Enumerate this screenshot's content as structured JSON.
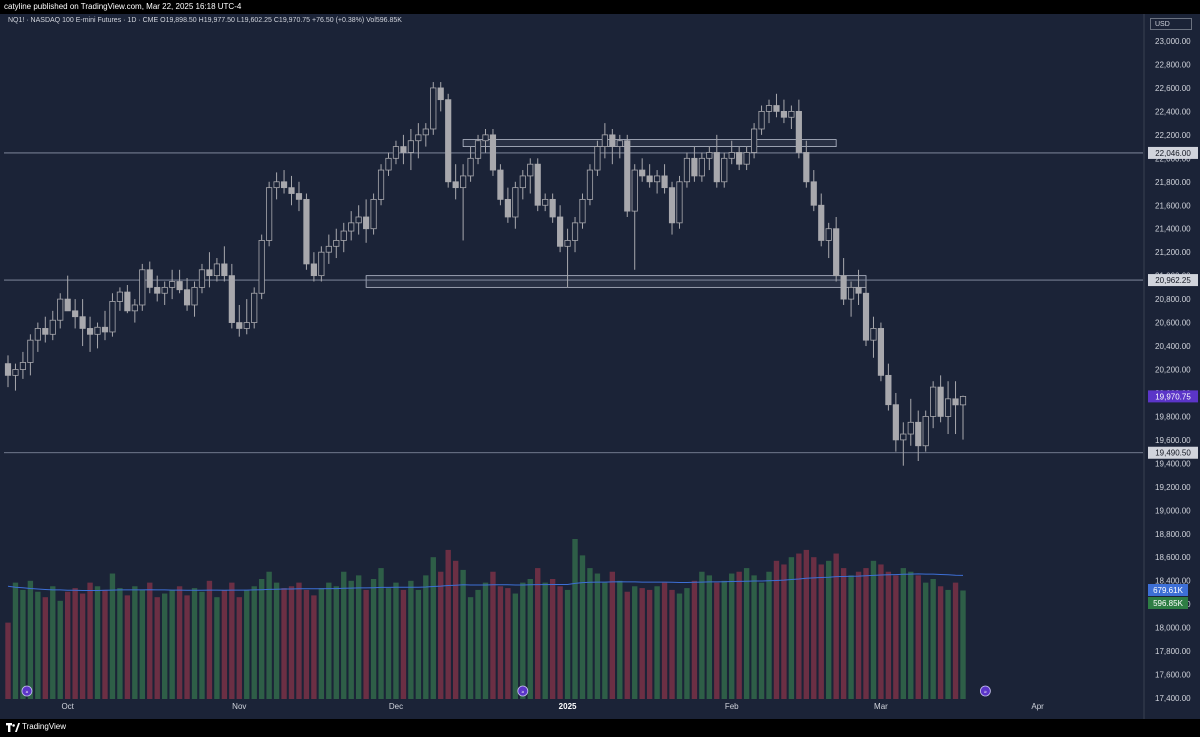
{
  "header": {
    "publisher_line": "catyline published on TradingView.com, Mar 22, 2025 16:18 UTC-4"
  },
  "legend": {
    "symbol": "NQ1! · NASDAQ 100 E-mini Futures · 1D · CME",
    "open_label": "O",
    "open": "19,898.50",
    "high_label": "H",
    "high": "19,977.50",
    "low_label": "L",
    "low": "19,602.25",
    "close_label": "C",
    "close": "19,970.75",
    "change": "+76.50 (+0.38%)",
    "vol_label": "Vol",
    "vol": "596.85K"
  },
  "currency_button": "USD",
  "footer": {
    "brand": "TradingView"
  },
  "colors": {
    "background": "#1b2337",
    "candle": "#a8a8ad",
    "level_line": "#8c94a8",
    "volume_up": "#2e5e47",
    "volume_down": "#6b2f44",
    "volume_ma": "#3d6fd6",
    "price_badge": "#5b35c8",
    "vol_ma_badge": "#3d6fd6",
    "vol_badge": "#2e7d44",
    "level_badge": "#d1d4dc"
  },
  "chart_data": {
    "type": "candlestick",
    "price_axis": {
      "ylim": [
        17300,
        23050
      ],
      "ticks": [
        "23,000.00",
        "22,800.00",
        "22,600.00",
        "22,400.00",
        "22,200.00",
        "22,000.00",
        "21,800.00",
        "21,600.00",
        "21,400.00",
        "21,200.00",
        "21,000.00",
        "20,800.00",
        "20,600.00",
        "20,400.00",
        "20,200.00",
        "20,000.00",
        "19,800.00",
        "19,600.00",
        "19,400.00",
        "19,200.00",
        "19,000.00",
        "18,800.00",
        "18,600.00",
        "18,400.00",
        "18,200.00",
        "18,000.00",
        "17,800.00",
        "17,600.00",
        "17,400.00"
      ],
      "tick_values": [
        23000,
        22800,
        22600,
        22400,
        22200,
        22000,
        21800,
        21600,
        21400,
        21200,
        21000,
        20800,
        20600,
        20400,
        20200,
        20000,
        19800,
        19600,
        19400,
        19200,
        19000,
        18800,
        18600,
        18400,
        18200,
        18000,
        17800,
        17600,
        17400
      ]
    },
    "time_axis": {
      "labels": [
        {
          "text": "Oct",
          "date": "2024-10-01",
          "bold": false
        },
        {
          "text": "Nov",
          "date": "2024-11-01",
          "bold": false
        },
        {
          "text": "Dec",
          "date": "2024-12-02",
          "bold": false
        },
        {
          "text": "2025",
          "date": "2025-01-02",
          "bold": true
        },
        {
          "text": "Feb",
          "date": "2025-02-03",
          "bold": false
        },
        {
          "text": "Mar",
          "date": "2025-03-03",
          "bold": false
        },
        {
          "text": "Apr",
          "date": "2025-04-01",
          "bold": false
        }
      ]
    },
    "levels": [
      {
        "value": 22046.0,
        "label": "22,046.00"
      },
      {
        "value": 20962.25,
        "label": "20,962.25"
      },
      {
        "value": 19490.5,
        "label": "19,490.50"
      }
    ],
    "zones": [
      {
        "from": "2024-12-13",
        "to": "2025-02-21",
        "low": 22100,
        "high": 22160
      },
      {
        "from": "2024-11-26",
        "to": "2025-02-27",
        "low": 20900,
        "high": 21000
      }
    ],
    "last_price": {
      "value": 19970.75,
      "label": "19,970.75"
    },
    "volume_badges": [
      {
        "value": 679.61,
        "label": "679.61K"
      },
      {
        "value": 596.85,
        "label": "596.85K"
      }
    ],
    "volume_unit": "K",
    "first_date": "2024-09-19",
    "candles": [
      {
        "o": 20250,
        "h": 20320,
        "l": 20050,
        "c": 20150
      },
      {
        "o": 20150,
        "h": 20250,
        "l": 20020,
        "c": 20200
      },
      {
        "o": 20200,
        "h": 20350,
        "l": 20120,
        "c": 20260
      },
      {
        "o": 20260,
        "h": 20500,
        "l": 20150,
        "c": 20450
      },
      {
        "o": 20450,
        "h": 20600,
        "l": 20350,
        "c": 20550
      },
      {
        "o": 20550,
        "h": 20650,
        "l": 20430,
        "c": 20500
      },
      {
        "o": 20500,
        "h": 20700,
        "l": 20450,
        "c": 20620
      },
      {
        "o": 20620,
        "h": 20850,
        "l": 20550,
        "c": 20800
      },
      {
        "o": 20800,
        "h": 21000,
        "l": 20700,
        "c": 20700
      },
      {
        "o": 20700,
        "h": 20800,
        "l": 20550,
        "c": 20650
      },
      {
        "o": 20650,
        "h": 20800,
        "l": 20400,
        "c": 20550
      },
      {
        "o": 20550,
        "h": 20650,
        "l": 20350,
        "c": 20500
      },
      {
        "o": 20500,
        "h": 20600,
        "l": 20380,
        "c": 20560
      },
      {
        "o": 20560,
        "h": 20700,
        "l": 20450,
        "c": 20520
      },
      {
        "o": 20520,
        "h": 20850,
        "l": 20480,
        "c": 20780
      },
      {
        "o": 20780,
        "h": 20900,
        "l": 20700,
        "c": 20860
      },
      {
        "o": 20860,
        "h": 20920,
        "l": 20680,
        "c": 20700
      },
      {
        "o": 20700,
        "h": 20800,
        "l": 20600,
        "c": 20750
      },
      {
        "o": 20750,
        "h": 21100,
        "l": 20700,
        "c": 21050
      },
      {
        "o": 21050,
        "h": 21120,
        "l": 20850,
        "c": 20900
      },
      {
        "o": 20900,
        "h": 21000,
        "l": 20780,
        "c": 20850
      },
      {
        "o": 20850,
        "h": 20950,
        "l": 20750,
        "c": 20900
      },
      {
        "o": 20900,
        "h": 21050,
        "l": 20800,
        "c": 20950
      },
      {
        "o": 20950,
        "h": 21050,
        "l": 20850,
        "c": 20880
      },
      {
        "o": 20880,
        "h": 20980,
        "l": 20700,
        "c": 20750
      },
      {
        "o": 20750,
        "h": 20950,
        "l": 20650,
        "c": 20900
      },
      {
        "o": 20900,
        "h": 21100,
        "l": 20850,
        "c": 21050
      },
      {
        "o": 21050,
        "h": 21200,
        "l": 20900,
        "c": 21000
      },
      {
        "o": 21000,
        "h": 21150,
        "l": 20950,
        "c": 21100
      },
      {
        "o": 21100,
        "h": 21250,
        "l": 20950,
        "c": 21000
      },
      {
        "o": 21000,
        "h": 21100,
        "l": 20550,
        "c": 20600
      },
      {
        "o": 20600,
        "h": 20750,
        "l": 20480,
        "c": 20550
      },
      {
        "o": 20550,
        "h": 20800,
        "l": 20500,
        "c": 20600
      },
      {
        "o": 20600,
        "h": 20900,
        "l": 20550,
        "c": 20850
      },
      {
        "o": 20850,
        "h": 21350,
        "l": 20800,
        "c": 21300
      },
      {
        "o": 21300,
        "h": 21800,
        "l": 21250,
        "c": 21750
      },
      {
        "o": 21750,
        "h": 21880,
        "l": 21650,
        "c": 21800
      },
      {
        "o": 21800,
        "h": 21900,
        "l": 21700,
        "c": 21750
      },
      {
        "o": 21750,
        "h": 21850,
        "l": 21600,
        "c": 21700
      },
      {
        "o": 21700,
        "h": 21800,
        "l": 21550,
        "c": 21650
      },
      {
        "o": 21650,
        "h": 21700,
        "l": 21050,
        "c": 21100
      },
      {
        "o": 21100,
        "h": 21200,
        "l": 20950,
        "c": 21000
      },
      {
        "o": 21000,
        "h": 21250,
        "l": 20950,
        "c": 21200
      },
      {
        "o": 21200,
        "h": 21350,
        "l": 21100,
        "c": 21250
      },
      {
        "o": 21250,
        "h": 21400,
        "l": 21150,
        "c": 21300
      },
      {
        "o": 21300,
        "h": 21450,
        "l": 21200,
        "c": 21380
      },
      {
        "o": 21380,
        "h": 21550,
        "l": 21300,
        "c": 21450
      },
      {
        "o": 21450,
        "h": 21600,
        "l": 21350,
        "c": 21500
      },
      {
        "o": 21500,
        "h": 21650,
        "l": 21280,
        "c": 21400
      },
      {
        "o": 21400,
        "h": 21700,
        "l": 21350,
        "c": 21650
      },
      {
        "o": 21650,
        "h": 21950,
        "l": 21600,
        "c": 21900
      },
      {
        "o": 21900,
        "h": 22050,
        "l": 21850,
        "c": 22000
      },
      {
        "o": 22000,
        "h": 22150,
        "l": 21950,
        "c": 22100
      },
      {
        "o": 22100,
        "h": 22200,
        "l": 21950,
        "c": 22050
      },
      {
        "o": 22050,
        "h": 22250,
        "l": 21900,
        "c": 22150
      },
      {
        "o": 22150,
        "h": 22300,
        "l": 22000,
        "c": 22200
      },
      {
        "o": 22200,
        "h": 22300,
        "l": 22100,
        "c": 22250
      },
      {
        "o": 22250,
        "h": 22650,
        "l": 22200,
        "c": 22600
      },
      {
        "o": 22600,
        "h": 22650,
        "l": 22400,
        "c": 22500
      },
      {
        "o": 22500,
        "h": 22550,
        "l": 21750,
        "c": 21800
      },
      {
        "o": 21800,
        "h": 21950,
        "l": 21650,
        "c": 21750
      },
      {
        "o": 21750,
        "h": 21950,
        "l": 21300,
        "c": 21850
      },
      {
        "o": 21850,
        "h": 22100,
        "l": 21800,
        "c": 22000
      },
      {
        "o": 22000,
        "h": 22200,
        "l": 21950,
        "c": 22150
      },
      {
        "o": 22150,
        "h": 22250,
        "l": 22050,
        "c": 22200
      },
      {
        "o": 22200,
        "h": 22250,
        "l": 21850,
        "c": 21900
      },
      {
        "o": 21900,
        "h": 21950,
        "l": 21600,
        "c": 21650
      },
      {
        "o": 21650,
        "h": 21750,
        "l": 21450,
        "c": 21500
      },
      {
        "o": 21500,
        "h": 21800,
        "l": 21400,
        "c": 21750
      },
      {
        "o": 21750,
        "h": 21900,
        "l": 21650,
        "c": 21850
      },
      {
        "o": 21850,
        "h": 22000,
        "l": 21700,
        "c": 21950
      },
      {
        "o": 21950,
        "h": 22000,
        "l": 21550,
        "c": 21600
      },
      {
        "o": 21600,
        "h": 21700,
        "l": 21550,
        "c": 21650
      },
      {
        "o": 21650,
        "h": 21700,
        "l": 21450,
        "c": 21500
      },
      {
        "o": 21500,
        "h": 21600,
        "l": 21200,
        "c": 21250
      },
      {
        "o": 21250,
        "h": 21400,
        "l": 20900,
        "c": 21300
      },
      {
        "o": 21300,
        "h": 21500,
        "l": 21200,
        "c": 21450
      },
      {
        "o": 21450,
        "h": 21700,
        "l": 21400,
        "c": 21650
      },
      {
        "o": 21650,
        "h": 21950,
        "l": 21600,
        "c": 21900
      },
      {
        "o": 21900,
        "h": 22150,
        "l": 21850,
        "c": 22100
      },
      {
        "o": 22100,
        "h": 22300,
        "l": 22000,
        "c": 22200
      },
      {
        "o": 22200,
        "h": 22250,
        "l": 21950,
        "c": 22100
      },
      {
        "o": 22100,
        "h": 22200,
        "l": 22000,
        "c": 22150
      },
      {
        "o": 22150,
        "h": 22200,
        "l": 21500,
        "c": 21550
      },
      {
        "o": 21550,
        "h": 21950,
        "l": 21050,
        "c": 21900
      },
      {
        "o": 21900,
        "h": 22000,
        "l": 21800,
        "c": 21850
      },
      {
        "o": 21850,
        "h": 21950,
        "l": 21750,
        "c": 21800
      },
      {
        "o": 21800,
        "h": 21900,
        "l": 21700,
        "c": 21850
      },
      {
        "o": 21850,
        "h": 21950,
        "l": 21700,
        "c": 21750
      },
      {
        "o": 21750,
        "h": 21800,
        "l": 21350,
        "c": 21450
      },
      {
        "o": 21450,
        "h": 21850,
        "l": 21400,
        "c": 21800
      },
      {
        "o": 21800,
        "h": 22050,
        "l": 21750,
        "c": 22000
      },
      {
        "o": 22000,
        "h": 22100,
        "l": 21800,
        "c": 21850
      },
      {
        "o": 21850,
        "h": 22050,
        "l": 21800,
        "c": 22000
      },
      {
        "o": 22000,
        "h": 22100,
        "l": 21900,
        "c": 22050
      },
      {
        "o": 22050,
        "h": 22200,
        "l": 21750,
        "c": 21800
      },
      {
        "o": 21800,
        "h": 22050,
        "l": 21750,
        "c": 22000
      },
      {
        "o": 22000,
        "h": 22150,
        "l": 21950,
        "c": 22050
      },
      {
        "o": 22050,
        "h": 22100,
        "l": 21900,
        "c": 21950
      },
      {
        "o": 21950,
        "h": 22100,
        "l": 21900,
        "c": 22050
      },
      {
        "o": 22050,
        "h": 22300,
        "l": 22000,
        "c": 22250
      },
      {
        "o": 22250,
        "h": 22450,
        "l": 22200,
        "c": 22400
      },
      {
        "o": 22400,
        "h": 22500,
        "l": 22300,
        "c": 22450
      },
      {
        "o": 22450,
        "h": 22550,
        "l": 22350,
        "c": 22400
      },
      {
        "o": 22400,
        "h": 22500,
        "l": 22300,
        "c": 22350
      },
      {
        "o": 22350,
        "h": 22450,
        "l": 22250,
        "c": 22400
      },
      {
        "o": 22400,
        "h": 22500,
        "l": 22000,
        "c": 22050
      },
      {
        "o": 22050,
        "h": 22150,
        "l": 21750,
        "c": 21800
      },
      {
        "o": 21800,
        "h": 21900,
        "l": 21550,
        "c": 21600
      },
      {
        "o": 21600,
        "h": 21700,
        "l": 21250,
        "c": 21300
      },
      {
        "o": 21300,
        "h": 21450,
        "l": 21150,
        "c": 21400
      },
      {
        "o": 21400,
        "h": 21500,
        "l": 20950,
        "c": 21000
      },
      {
        "o": 21000,
        "h": 21150,
        "l": 20750,
        "c": 20800
      },
      {
        "o": 20800,
        "h": 20950,
        "l": 20650,
        "c": 20900
      },
      {
        "o": 20900,
        "h": 21050,
        "l": 20750,
        "c": 20850
      },
      {
        "o": 20850,
        "h": 20950,
        "l": 20400,
        "c": 20450
      },
      {
        "o": 20450,
        "h": 20650,
        "l": 20300,
        "c": 20550
      },
      {
        "o": 20550,
        "h": 20600,
        "l": 20100,
        "c": 20150
      },
      {
        "o": 20150,
        "h": 20250,
        "l": 19850,
        "c": 19900
      },
      {
        "o": 19900,
        "h": 20000,
        "l": 19500,
        "c": 19600
      },
      {
        "o": 19600,
        "h": 19750,
        "l": 19380,
        "c": 19650
      },
      {
        "o": 19650,
        "h": 19950,
        "l": 19550,
        "c": 19750
      },
      {
        "o": 19750,
        "h": 19850,
        "l": 19420,
        "c": 19550
      },
      {
        "o": 19550,
        "h": 19850,
        "l": 19500,
        "c": 19800
      },
      {
        "o": 19800,
        "h": 20100,
        "l": 19700,
        "c": 20050
      },
      {
        "o": 20050,
        "h": 20150,
        "l": 19750,
        "c": 19800
      },
      {
        "o": 19800,
        "h": 20100,
        "l": 19650,
        "c": 19950
      },
      {
        "o": 19950,
        "h": 20100,
        "l": 19650,
        "c": 19898.5
      },
      {
        "o": 19898.5,
        "h": 19977.5,
        "l": 19602.25,
        "c": 19970.75
      }
    ],
    "volume": [
      420,
      640,
      600,
      650,
      590,
      560,
      620,
      540,
      590,
      610,
      580,
      640,
      620,
      600,
      690,
      610,
      570,
      620,
      600,
      640,
      560,
      580,
      600,
      620,
      570,
      610,
      590,
      650,
      560,
      600,
      640,
      560,
      600,
      620,
      660,
      700,
      640,
      610,
      620,
      640,
      600,
      570,
      610,
      640,
      620,
      700,
      650,
      680,
      600,
      660,
      720,
      610,
      640,
      600,
      650,
      600,
      680,
      780,
      700,
      820,
      760,
      710,
      560,
      600,
      640,
      700,
      620,
      610,
      580,
      640,
      660,
      720,
      640,
      660,
      620,
      600,
      880,
      790,
      720,
      690,
      640,
      700,
      650,
      590,
      620,
      610,
      600,
      620,
      640,
      600,
      580,
      610,
      650,
      700,
      680,
      640,
      650,
      690,
      700,
      720,
      680,
      640,
      700,
      760,
      740,
      780,
      800,
      820,
      780,
      740,
      760,
      800,
      720,
      680,
      700,
      720,
      760,
      740,
      700,
      680,
      720,
      700,
      680,
      640,
      660,
      620,
      600,
      640,
      596.85
    ],
    "volume_ma": [
      620,
      615,
      612,
      608,
      605,
      602,
      600,
      600,
      598,
      598,
      597,
      597,
      597,
      598,
      599,
      600,
      600,
      600,
      600,
      601,
      600,
      600,
      599,
      599,
      598,
      598,
      598,
      599,
      599,
      598,
      599,
      599,
      599,
      600,
      601,
      603,
      604,
      605,
      605,
      606,
      606,
      606,
      606,
      607,
      607,
      609,
      610,
      611,
      611,
      612,
      614,
      614,
      615,
      615,
      615,
      615,
      616,
      619,
      621,
      624,
      626,
      628,
      627,
      627,
      627,
      628,
      628,
      628,
      627,
      627,
      628,
      629,
      629,
      630,
      630,
      630,
      636,
      640,
      642,
      643,
      643,
      644,
      645,
      644,
      644,
      643,
      643,
      643,
      643,
      642,
      641,
      641,
      642,
      643,
      644,
      644,
      645,
      646,
      647,
      648,
      649,
      649,
      650,
      652,
      654,
      657,
      660,
      664,
      666,
      668,
      670,
      673,
      674,
      675,
      676,
      678,
      680,
      682,
      683,
      684,
      686,
      687,
      688,
      687,
      687,
      685,
      683,
      681,
      679.61
    ]
  }
}
